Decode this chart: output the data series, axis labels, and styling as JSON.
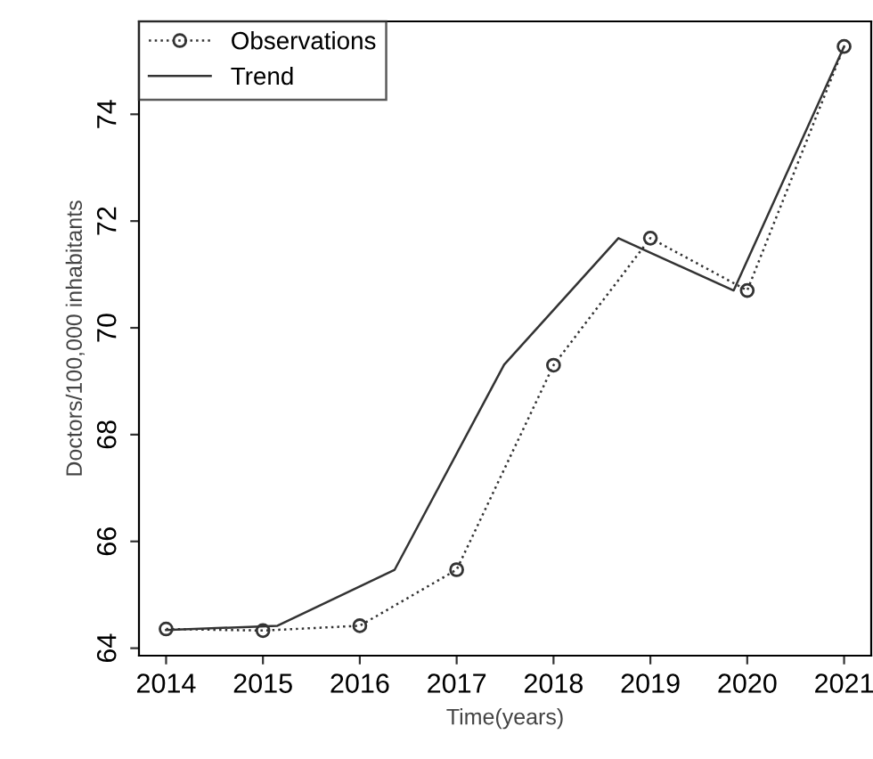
{
  "chart_data": {
    "type": "line",
    "xlabel": "Time(years)",
    "ylabel": "Doctors/100,000 inhabitants",
    "xlim": [
      2013.72,
      2021.28
    ],
    "ylim": [
      63.86,
      75.74
    ],
    "xticks": [
      2014,
      2015,
      2016,
      2017,
      2018,
      2019,
      2020,
      2021
    ],
    "yticks": [
      64,
      66,
      68,
      70,
      72,
      74
    ],
    "grid": false,
    "legend": "top left",
    "series": [
      {
        "name": "Observations",
        "color": "#333333",
        "marker": "circle",
        "line_style": "dotted",
        "x": [
          2014,
          2015,
          2016,
          2017,
          2018,
          2019,
          2020,
          2021
        ],
        "values": [
          64.36,
          64.33,
          64.42,
          65.47,
          69.3,
          71.68,
          70.7,
          75.27
        ]
      },
      {
        "name": "Trend",
        "color": "#333333",
        "marker": "none",
        "line_style": "solid",
        "x": [
          2014,
          2015.15,
          2016.36,
          2017.49,
          2018.67,
          2019.86,
          2021
        ],
        "values": [
          64.34,
          64.42,
          65.47,
          69.31,
          71.68,
          70.7,
          75.27
        ]
      }
    ]
  }
}
